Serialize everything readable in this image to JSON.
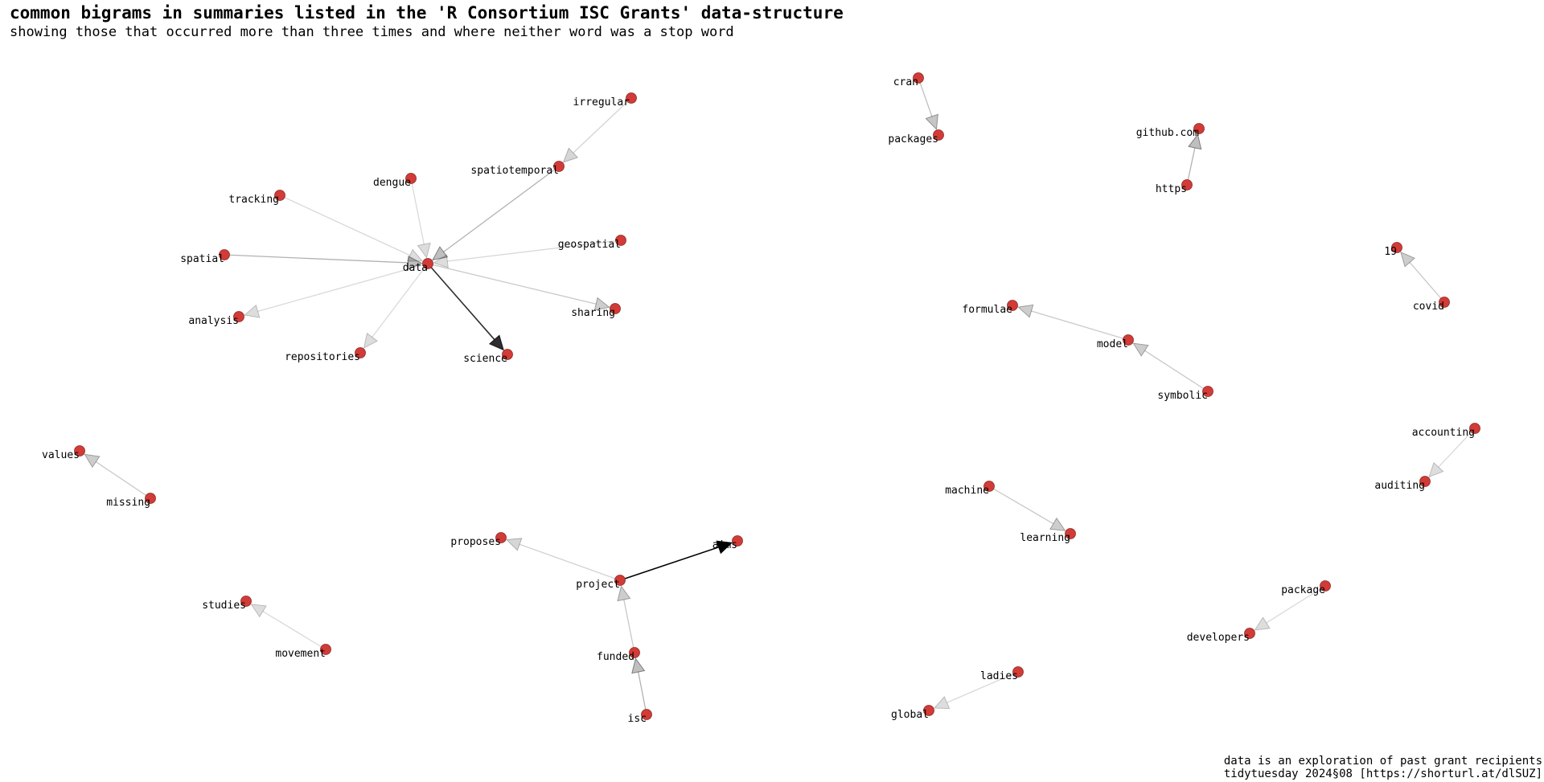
{
  "title": "common bigrams in summaries listed in the 'R Consortium ISC Grants' data-structure",
  "subtitle": "showing those that occurred more than three times and where neither word was a stop word",
  "caption": {
    "line1": "data is an exploration of past grant recipients",
    "line2": "tidytuesday 2024§08 [https://shorturl.at/dlSUZ]"
  },
  "colors": {
    "node_fill": "#d23b37",
    "node_stroke": "#8a2b27",
    "edge": "#000000"
  },
  "graph": {
    "nodes": [
      {
        "id": "data",
        "label": "data"
      },
      {
        "id": "irregular",
        "label": "irregular"
      },
      {
        "id": "spatiotemporal",
        "label": "spatiotemporal"
      },
      {
        "id": "dengue",
        "label": "dengue"
      },
      {
        "id": "tracking",
        "label": "tracking"
      },
      {
        "id": "spatial",
        "label": "spatial"
      },
      {
        "id": "geospatial",
        "label": "geospatial"
      },
      {
        "id": "analysis",
        "label": "analysis"
      },
      {
        "id": "sharing",
        "label": "sharing"
      },
      {
        "id": "repositories",
        "label": "repositories"
      },
      {
        "id": "science",
        "label": "science"
      },
      {
        "id": "cran",
        "label": "cran"
      },
      {
        "id": "packages",
        "label": "packages"
      },
      {
        "id": "github",
        "label": "github.com"
      },
      {
        "id": "https",
        "label": "https"
      },
      {
        "id": "19",
        "label": "19"
      },
      {
        "id": "covid",
        "label": "covid"
      },
      {
        "id": "formulae",
        "label": "formulae"
      },
      {
        "id": "model",
        "label": "model"
      },
      {
        "id": "symbolic",
        "label": "symbolic"
      },
      {
        "id": "accounting",
        "label": "accounting"
      },
      {
        "id": "auditing",
        "label": "auditing"
      },
      {
        "id": "values",
        "label": "values"
      },
      {
        "id": "missing",
        "label": "missing"
      },
      {
        "id": "machine",
        "label": "machine"
      },
      {
        "id": "learning",
        "label": "learning"
      },
      {
        "id": "proposes",
        "label": "proposes"
      },
      {
        "id": "aims",
        "label": "aims"
      },
      {
        "id": "project",
        "label": "project"
      },
      {
        "id": "funded",
        "label": "funded"
      },
      {
        "id": "isc",
        "label": "isc"
      },
      {
        "id": "studies",
        "label": "studies"
      },
      {
        "id": "movement",
        "label": "movement"
      },
      {
        "id": "package",
        "label": "package"
      },
      {
        "id": "developers",
        "label": "developers"
      },
      {
        "id": "ladies",
        "label": "ladies"
      },
      {
        "id": "global",
        "label": "global"
      }
    ],
    "edges": [
      {
        "from": "irregular",
        "to": "spatiotemporal",
        "opacity": 0.18
      },
      {
        "from": "spatiotemporal",
        "to": "data",
        "opacity": 0.3
      },
      {
        "from": "dengue",
        "to": "data",
        "opacity": 0.15
      },
      {
        "from": "tracking",
        "to": "data",
        "opacity": 0.15
      },
      {
        "from": "spatial",
        "to": "data",
        "opacity": 0.3
      },
      {
        "from": "geospatial",
        "to": "data",
        "opacity": 0.15
      },
      {
        "from": "data",
        "to": "analysis",
        "opacity": 0.15
      },
      {
        "from": "data",
        "to": "sharing",
        "opacity": 0.22
      },
      {
        "from": "data",
        "to": "repositories",
        "opacity": 0.15
      },
      {
        "from": "data",
        "to": "science",
        "opacity": 0.82
      },
      {
        "from": "cran",
        "to": "packages",
        "opacity": 0.25
      },
      {
        "from": "https",
        "to": "github",
        "opacity": 0.3
      },
      {
        "from": "covid",
        "to": "19",
        "opacity": 0.22
      },
      {
        "from": "model",
        "to": "formulae",
        "opacity": 0.22
      },
      {
        "from": "symbolic",
        "to": "model",
        "opacity": 0.22
      },
      {
        "from": "accounting",
        "to": "auditing",
        "opacity": 0.15
      },
      {
        "from": "missing",
        "to": "values",
        "opacity": 0.22
      },
      {
        "from": "machine",
        "to": "learning",
        "opacity": 0.22
      },
      {
        "from": "project",
        "to": "proposes",
        "opacity": 0.18
      },
      {
        "from": "project",
        "to": "aims",
        "opacity": 1.0
      },
      {
        "from": "funded",
        "to": "project",
        "opacity": 0.22
      },
      {
        "from": "isc",
        "to": "funded",
        "opacity": 0.3
      },
      {
        "from": "movement",
        "to": "studies",
        "opacity": 0.15
      },
      {
        "from": "package",
        "to": "developers",
        "opacity": 0.15
      },
      {
        "from": "ladies",
        "to": "global",
        "opacity": 0.15
      }
    ]
  }
}
